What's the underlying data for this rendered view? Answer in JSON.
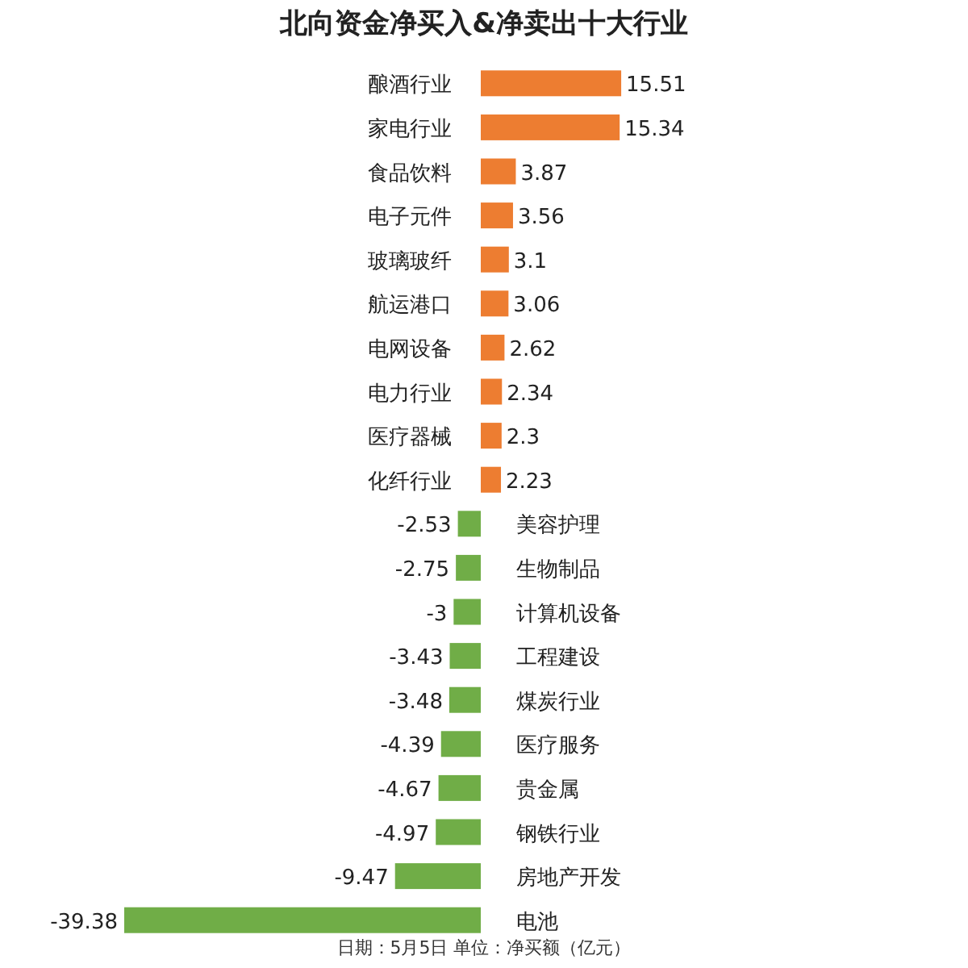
{
  "chart_data": {
    "type": "bar",
    "orientation": "horizontal",
    "title": "北向资金净买入&净卖出十大行业",
    "categories": [
      "酿酒行业",
      "家电行业",
      "食品饮料",
      "电子元件",
      "玻璃玻纤",
      "航运港口",
      "电网设备",
      "电力行业",
      "医疗器械",
      "化纤行业",
      "美容护理",
      "生物制品",
      "计算机设备",
      "工程建设",
      "煤炭行业",
      "医疗服务",
      "贵金属",
      "钢铁行业",
      "房地产开发",
      "电池"
    ],
    "values": [
      15.51,
      15.34,
      3.87,
      3.56,
      3.1,
      3.06,
      2.62,
      2.34,
      2.3,
      2.23,
      -2.53,
      -2.75,
      -3,
      -3.43,
      -3.48,
      -4.39,
      -4.67,
      -4.97,
      -9.47,
      -39.38
    ],
    "colors": [
      "#ed7d31",
      "#ed7d31",
      "#ed7d31",
      "#ed7d31",
      "#ed7d31",
      "#ed7d31",
      "#ed7d31",
      "#ed7d31",
      "#ed7d31",
      "#ed7d31",
      "#70ad47",
      "#70ad47",
      "#70ad47",
      "#70ad47",
      "#70ad47",
      "#70ad47",
      "#70ad47",
      "#70ad47",
      "#70ad47",
      "#70ad47"
    ],
    "data_labels": true,
    "annotations": [
      "日期：5月5日 单位：净买额（亿元）"
    ]
  }
}
